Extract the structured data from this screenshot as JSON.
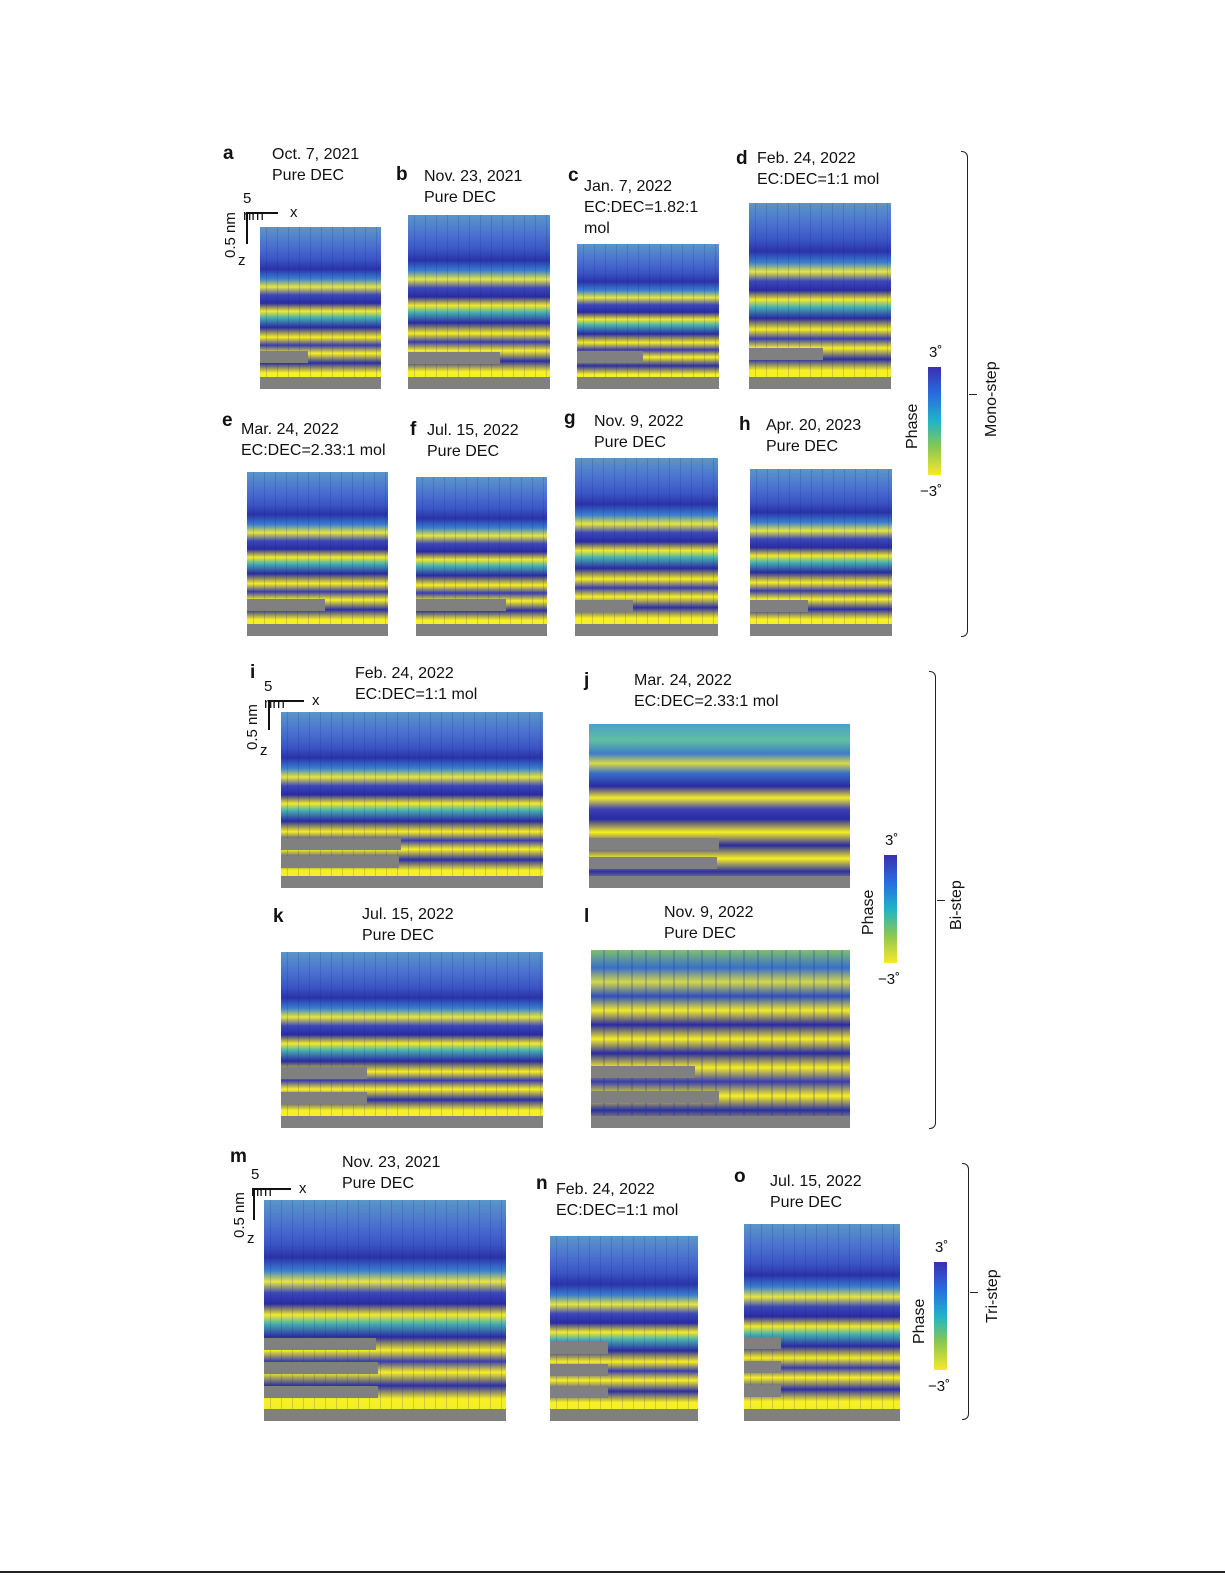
{
  "panels": {
    "a": {
      "label": "a",
      "caption": "Oct. 7, 2021\nPure DEC"
    },
    "b": {
      "label": "b",
      "caption": "Nov. 23, 2021\nPure DEC"
    },
    "c": {
      "label": "c",
      "caption": "Jan. 7, 2022\nEC:DEC=1.82:1\nmol"
    },
    "d": {
      "label": "d",
      "caption": "Feb. 24, 2022\nEC:DEC=1:1 mol"
    },
    "e": {
      "label": "e",
      "caption": "Mar. 24, 2022\nEC:DEC=2.33:1 mol"
    },
    "f": {
      "label": "f",
      "caption": "Jul. 15, 2022\nPure DEC"
    },
    "g": {
      "label": "g",
      "caption": "Nov. 9, 2022\nPure DEC"
    },
    "h": {
      "label": "h",
      "caption": "Apr. 20, 2023\nPure DEC"
    },
    "i": {
      "label": "i",
      "caption": "Feb. 24, 2022\nEC:DEC=1:1 mol"
    },
    "j": {
      "label": "j",
      "caption": "Mar. 24, 2022\nEC:DEC=2.33:1 mol"
    },
    "k": {
      "label": "k",
      "caption": "Jul. 15, 2022\nPure DEC"
    },
    "l": {
      "label": "l",
      "caption": "Nov. 9, 2022\nPure DEC"
    },
    "m": {
      "label": "m",
      "caption": "Nov. 23, 2021\nPure DEC"
    },
    "n": {
      "label": "n",
      "caption": "Feb. 24, 2022\nEC:DEC=1:1 mol"
    },
    "o": {
      "label": "o",
      "caption": "Jul. 15, 2022\nPure DEC"
    }
  },
  "scale": {
    "x_len": "5 nm",
    "x_axis": "x",
    "z_len": "0.5 nm",
    "z_axis": "z"
  },
  "colorbar": {
    "title": "Phase",
    "max": "3˚",
    "min": "−3˚"
  },
  "groups": {
    "mono": "Mono-step",
    "bi": "Bi-step",
    "tri": "Tri-step"
  },
  "colors": {
    "substrate": "#808080",
    "yellow": "#f8f024",
    "blue": "#2a2ba2"
  }
}
